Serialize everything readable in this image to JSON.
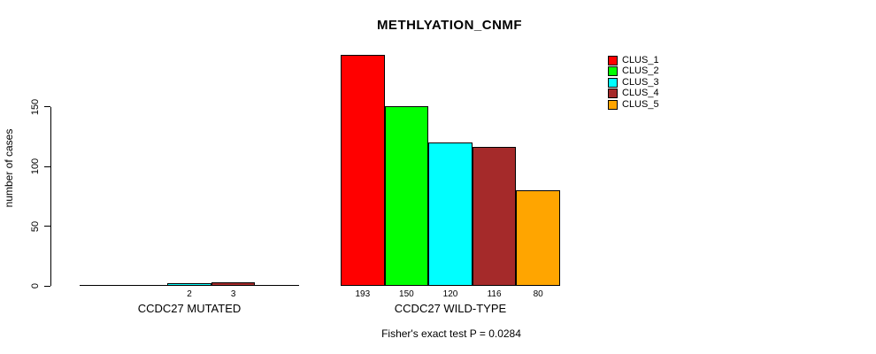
{
  "chart_data": {
    "type": "bar",
    "title": "METHLYATION_CNMF",
    "ylabel": "number of cases",
    "xlabel": "",
    "ylim": [
      0,
      200
    ],
    "yticks": [
      0,
      50,
      100,
      150
    ],
    "grid": false,
    "legend_position": "top-right",
    "series_names": [
      "CLUS_1",
      "CLUS_2",
      "CLUS_3",
      "CLUS_4",
      "CLUS_5"
    ],
    "series_colors": [
      "#FF0000",
      "#00FF00",
      "#00FFFF",
      "#A52A2A",
      "#FFA500"
    ],
    "groups": [
      {
        "label": "CCDC27 MUTATED",
        "values": [
          0,
          0,
          2,
          3,
          0
        ],
        "bar_labels": [
          "",
          "",
          "2",
          "3",
          ""
        ]
      },
      {
        "label": "CCDC27 WILD-TYPE",
        "values": [
          193,
          150,
          120,
          116,
          80
        ],
        "bar_labels": [
          "193",
          "150",
          "120",
          "116",
          "80"
        ]
      }
    ],
    "footnote": "Fisher's exact test P = 0.0284",
    "axis_color": "#000000",
    "background_color": "#FFFFFF"
  }
}
